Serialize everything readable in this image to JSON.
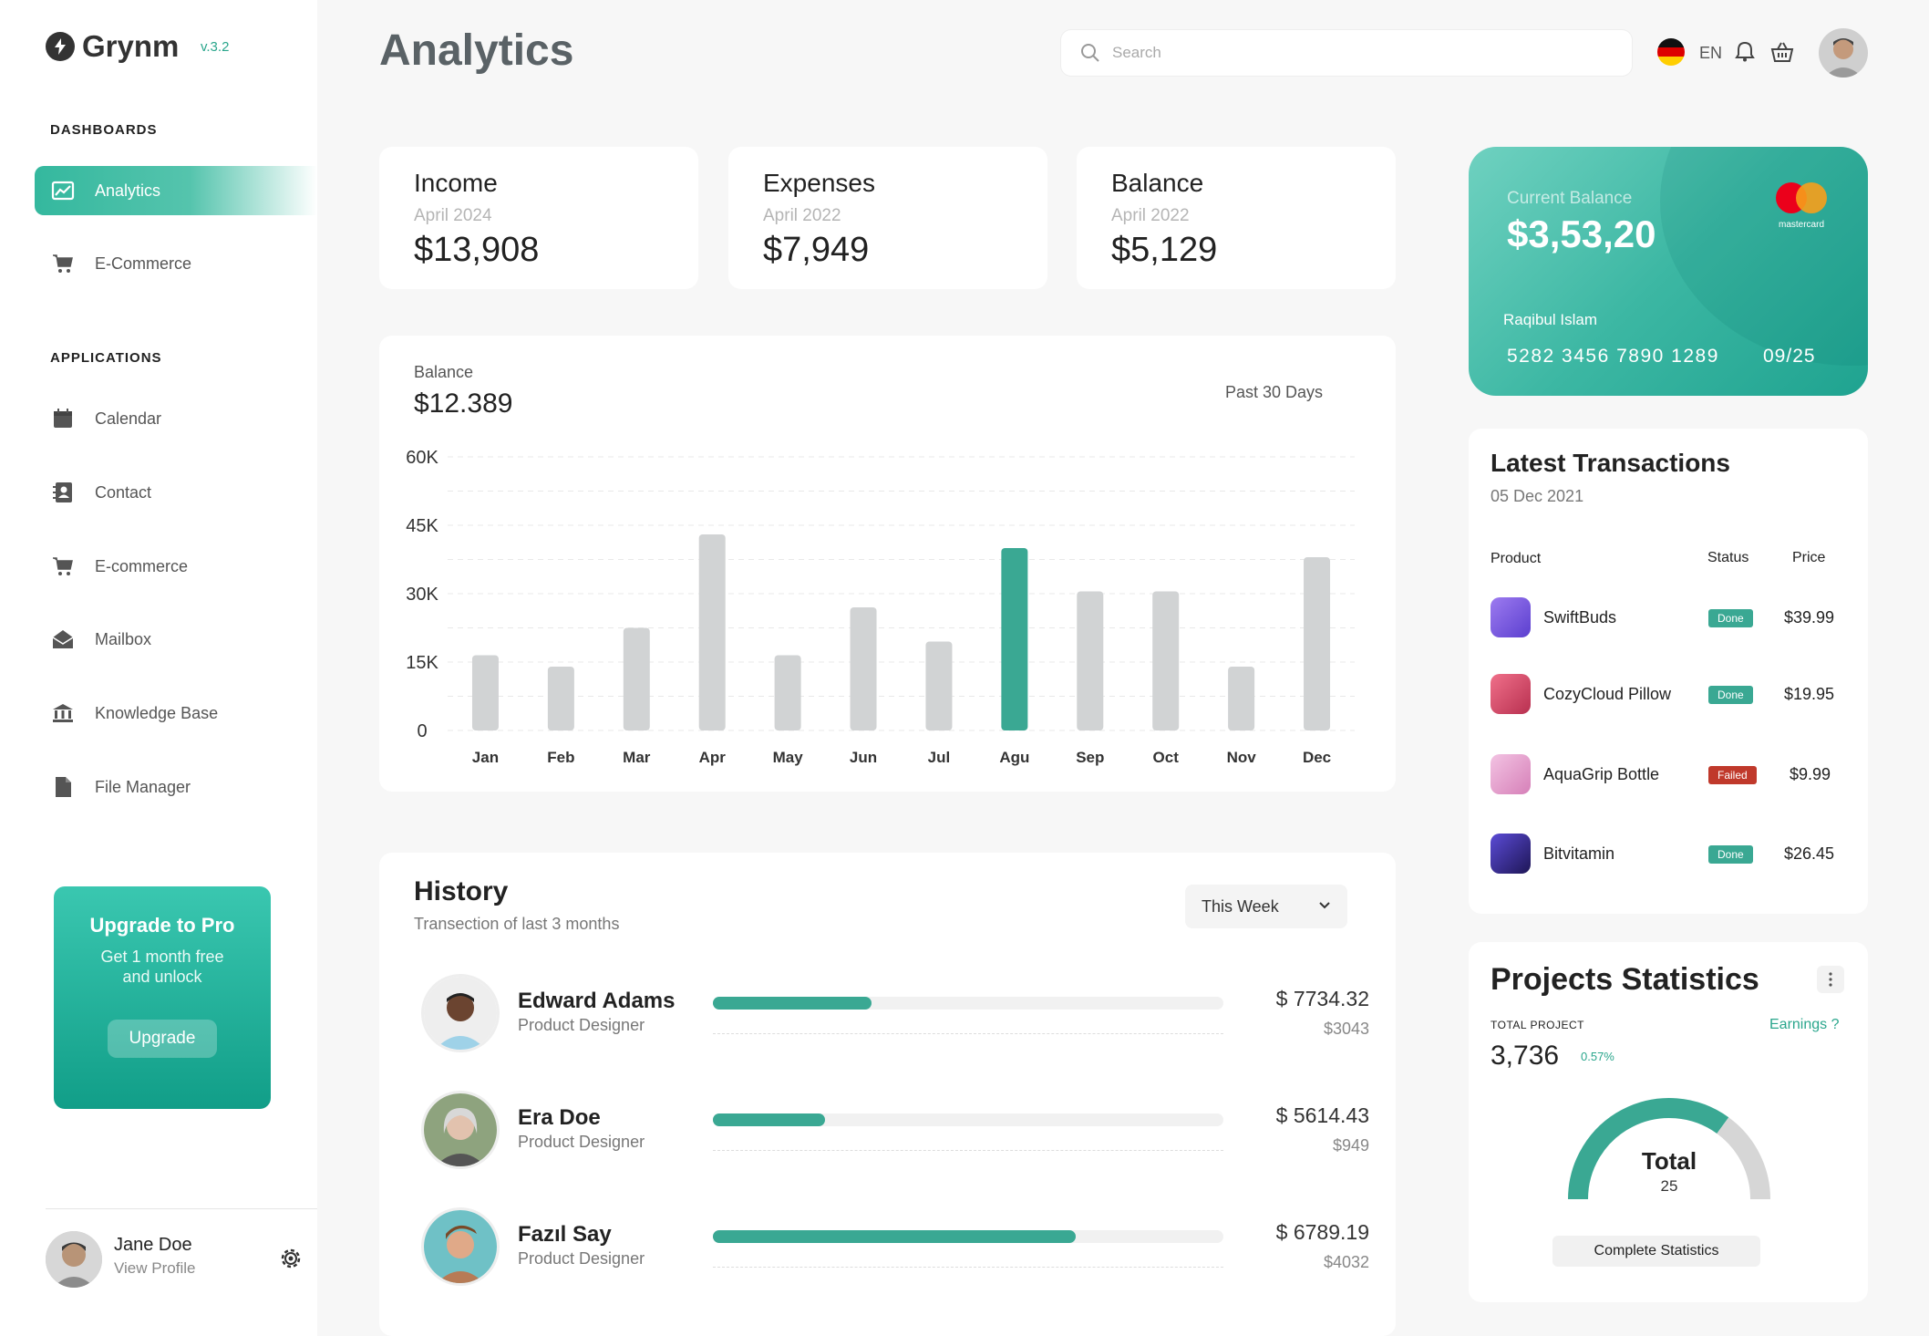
{
  "brand": {
    "name": "Grynm",
    "version": "v.3.2"
  },
  "sidebar": {
    "section_dashboards": "DASHBOARDS",
    "dashboards": [
      {
        "label": "Analytics",
        "icon": "chart-icon",
        "active": true
      },
      {
        "label": "E-Commerce",
        "icon": "cart-icon"
      }
    ],
    "section_applications": "APPLICATIONS",
    "applications": [
      {
        "label": "Calendar",
        "icon": "calendar-icon"
      },
      {
        "label": "Contact",
        "icon": "contact-icon"
      },
      {
        "label": "E-commerce",
        "icon": "cart-icon"
      },
      {
        "label": "Mailbox",
        "icon": "mailbox-icon"
      },
      {
        "label": "Knowledge Base",
        "icon": "bank-icon"
      },
      {
        "label": "File Manager",
        "icon": "file-icon"
      }
    ],
    "upgrade": {
      "title": "Upgrade to Pro",
      "subtitle_line1": "Get 1 month free",
      "subtitle_line2": "and unlock",
      "button": "Upgrade"
    },
    "user": {
      "name": "Jane Doe",
      "link": "View Profile"
    }
  },
  "header": {
    "title": "Analytics",
    "search_placeholder": "Search",
    "language": "EN"
  },
  "stats": [
    {
      "label": "Income",
      "period": "April 2024",
      "value": "$13,908"
    },
    {
      "label": "Expenses",
      "period": "April 2022",
      "value": "$7,949"
    },
    {
      "label": "Balance",
      "period": "April 2022",
      "value": "$5,129"
    }
  ],
  "balance_chart": {
    "label": "Balance",
    "value": "$12.389",
    "range": "Past 30 Days"
  },
  "chart_data": {
    "type": "bar",
    "categories": [
      "Jan",
      "Feb",
      "Mar",
      "Apr",
      "May",
      "Jun",
      "Jul",
      "Agu",
      "Sep",
      "Oct",
      "Nov",
      "Dec"
    ],
    "values": [
      16500,
      14000,
      22500,
      43000,
      16500,
      27000,
      19500,
      40000,
      30500,
      30500,
      14000,
      38000
    ],
    "highlight_index": 7,
    "yticks": [
      "60K",
      "45K",
      "30K",
      "15K",
      "0"
    ],
    "ylim": [
      0,
      60000
    ],
    "colors": {
      "bar": "#d1d3d4",
      "highlight": "#3aa893"
    }
  },
  "history": {
    "title": "History",
    "subtitle": "Transection of last 3 months",
    "filter": "This Week",
    "rows": [
      {
        "name": "Edward Adams",
        "role": "Product Designer",
        "amount": "$ 7734.32",
        "sub": "$3043",
        "progress": 0.31
      },
      {
        "name": "Era Doe",
        "role": "Product Designer",
        "amount": "$ 5614.43",
        "sub": "$949",
        "progress": 0.22
      },
      {
        "name": "Fazıl Say",
        "role": "Product Designer",
        "amount": "$ 6789.19",
        "sub": "$4032",
        "progress": 0.71
      }
    ]
  },
  "credit_card": {
    "label": "Current Balance",
    "amount": "$3,53,20",
    "holder": "Raqibul Islam",
    "number": "5282 3456 7890 1289",
    "expiry": "09/25",
    "brand": "mastercard"
  },
  "transactions": {
    "title": "Latest Transactions",
    "date": "05 Dec 2021",
    "headers": {
      "product": "Product",
      "status": "Status",
      "price": "Price"
    },
    "rows": [
      {
        "product": "SwiftBuds",
        "status": "Done",
        "price": "$39.99",
        "color": "#7d5ce0"
      },
      {
        "product": "CozyCloud Pillow",
        "status": "Done",
        "price": "$19.95",
        "color": "#e0506a"
      },
      {
        "product": "AquaGrip Bottle",
        "status": "Failed",
        "price": "$9.99",
        "color": "#e9a6d0"
      },
      {
        "product": "Bitvitamin",
        "status": "Done",
        "price": "$26.45",
        "color": "#3a2a8a"
      }
    ]
  },
  "projects": {
    "title": "Projects Statistics",
    "total_label": "TOTAL PROJECT",
    "total_value": "3,736",
    "change": "0.57%",
    "earnings_link": "Earnings ?",
    "gauge_label": "Total",
    "gauge_value": "25",
    "gauge_fraction": 0.7,
    "button": "Complete Statistics"
  },
  "colors": {
    "accent": "#3aa893",
    "failed": "#c0392b"
  }
}
